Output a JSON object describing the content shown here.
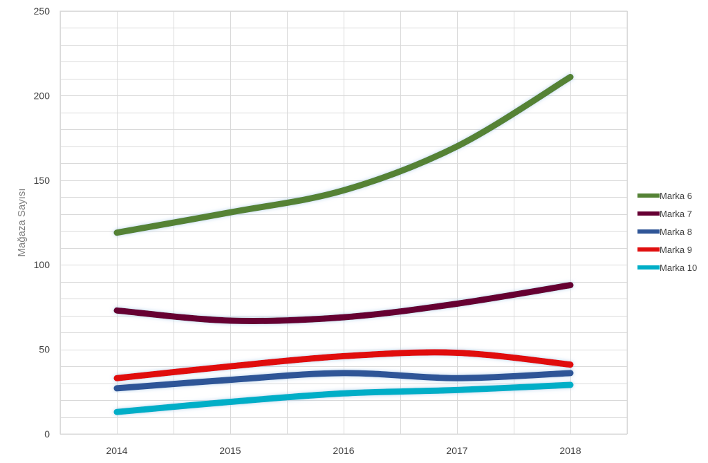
{
  "chart_data": {
    "type": "line",
    "title": "",
    "xlabel": "",
    "ylabel": "Mağaza Sayısı",
    "categories": [
      "2014",
      "2015",
      "2016",
      "2017",
      "2018"
    ],
    "ylim": [
      0,
      250
    ],
    "yticks": [
      0,
      50,
      100,
      150,
      200,
      250
    ],
    "grid": true,
    "legend_position": "right",
    "series": [
      {
        "name": "Marka 6",
        "color": "#548235",
        "values": [
          119,
          131,
          144,
          170,
          211
        ]
      },
      {
        "name": "Marka 7",
        "color": "#660033",
        "values": [
          73,
          67,
          69,
          77,
          88
        ]
      },
      {
        "name": "Marka 8",
        "color": "#2f5597",
        "values": [
          27,
          32,
          36,
          33,
          36
        ]
      },
      {
        "name": "Marka 9",
        "color": "#e00f0f",
        "values": [
          33,
          40,
          46,
          48,
          41
        ]
      },
      {
        "name": "Marka 10",
        "color": "#00aec7",
        "values": [
          13,
          19,
          24,
          26,
          29
        ]
      }
    ]
  }
}
